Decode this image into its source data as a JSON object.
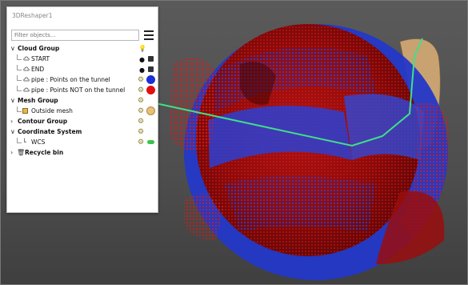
{
  "window": {
    "title": "3DReshaper1"
  },
  "filter": {
    "placeholder": "Filter objects..."
  },
  "tree": {
    "cloud_group": "Cloud Group",
    "start": "START",
    "end": "END",
    "pipe_on": "pipe : Points on the tunnel",
    "pipe_not": "pipe : Points NOT on the tunnel",
    "mesh_group": "Mesh Group",
    "outside_mesh": "Outside mesh",
    "contour_group": "Contour Group",
    "coord_system": "Coordinate System",
    "wcs": "WCS",
    "recycle_bin": "Recycle bin"
  },
  "colors": {
    "pipe_on_dot": "#1a2fd8",
    "pipe_not_dot": "#e01010",
    "mesh_dot": "#e8c07a",
    "wcs_toggle": "#3cc24a"
  },
  "icons": [
    "menu-icon",
    "chevron-down-icon",
    "chevron-right-icon",
    "cloud-icon",
    "mesh-icon",
    "axes-icon",
    "trash-icon",
    "bulb-icon",
    "gear-icon",
    "lock-icon"
  ]
}
